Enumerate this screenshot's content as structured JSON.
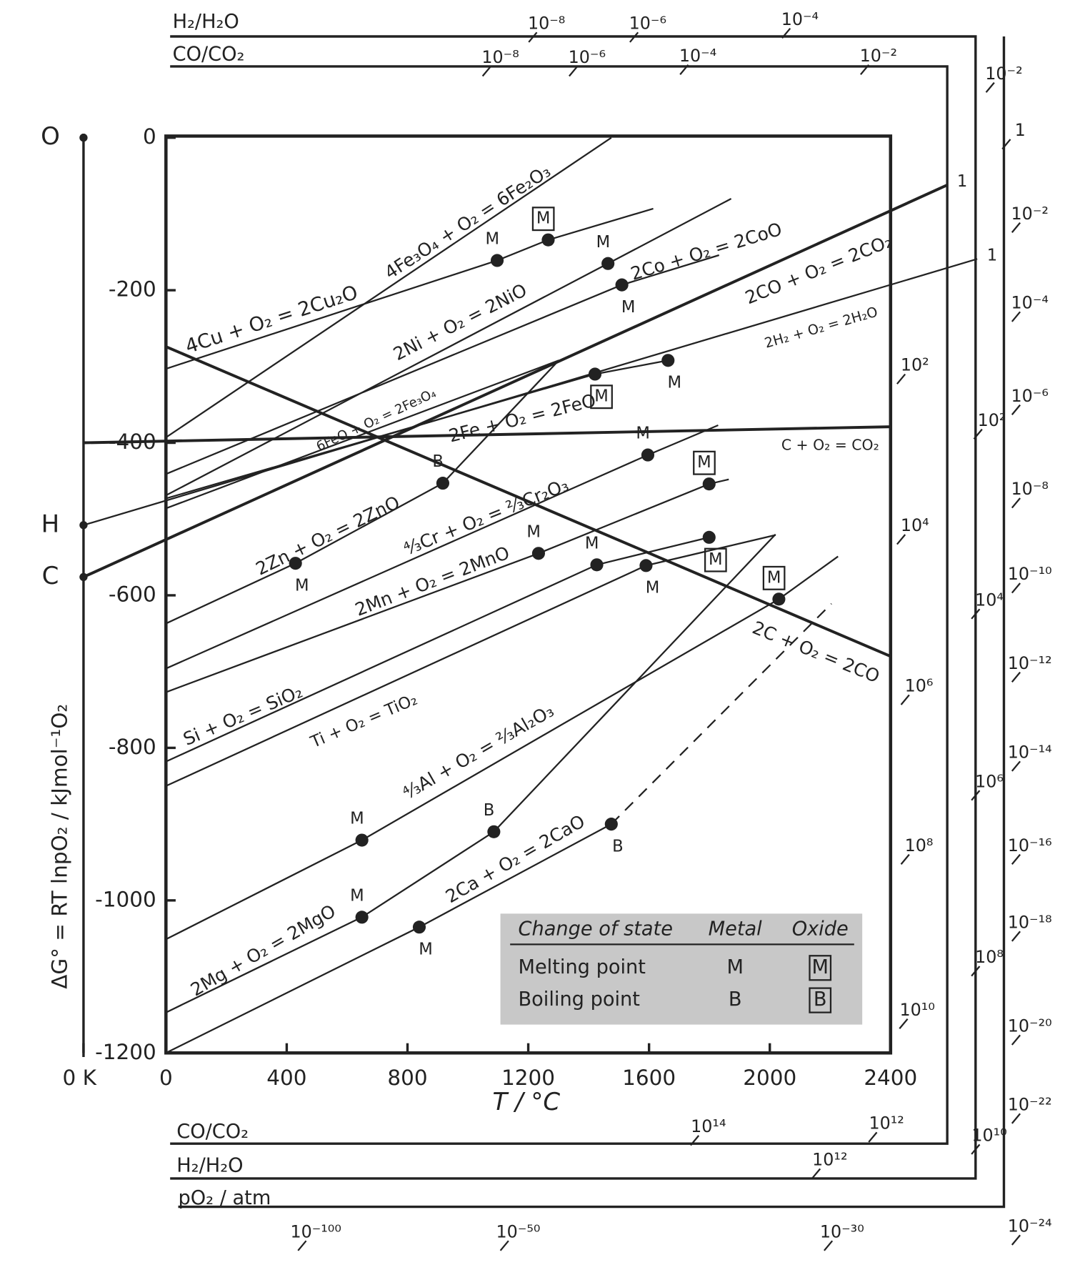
{
  "chart_data": {
    "type": "line",
    "xlabel": "T / °C",
    "ylabel": "ΔG° = RT lnpO₂  /  kJmol⁻¹O₂",
    "color": "#222222",
    "xlim": [
      -273,
      2400
    ],
    "xticks": [
      {
        "value": -273,
        "label": "0 K"
      },
      0,
      400,
      800,
      1200,
      1600,
      2000,
      2400
    ],
    "ylim": [
      -1200,
      0
    ],
    "yticks": [
      0,
      -200,
      -400,
      -600,
      -800,
      -1000,
      -1200
    ],
    "origin_points": {
      "labels": [
        "O",
        "H",
        "C"
      ],
      "values": [
        0,
        -508,
        -576
      ]
    },
    "series": [
      {
        "name": "4Cu + O₂ = 2Cu₂O",
        "x": [
          0,
          1097,
          1266,
          1614
        ],
        "values": [
          -303,
          -161,
          -134,
          -93
        ],
        "markers": [
          null,
          {
            "label": "M",
            "boxed": false
          },
          {
            "label": "M",
            "boxed": true
          },
          null
        ]
      },
      {
        "name": "4Fe₃O₄ + O₂ = 6Fe₂O₃",
        "x": [
          0,
          1475
        ],
        "values": [
          -393,
          0
        ]
      },
      {
        "name": "2Ni + O₂ = 2NiO",
        "x": [
          0,
          1464,
          1872
        ],
        "values": [
          -469,
          -165,
          -80
        ],
        "markers": [
          null,
          {
            "label": "M",
            "boxed": false
          },
          null
        ]
      },
      {
        "name": "2Co + O₂ = 2CoO",
        "x": [
          0,
          1510,
          1832
        ],
        "values": [
          -441,
          -193,
          -154
        ],
        "markers": [
          null,
          {
            "label": "M",
            "boxed": false
          },
          null
        ]
      },
      {
        "name": "2CO + O₂ = 2CO₂",
        "x": [
          -273,
          2588
        ],
        "values": [
          -576,
          -62
        ],
        "bold": true,
        "end_label": "1"
      },
      {
        "name": "2H₂ + O₂ = 2H₂O",
        "x": [
          -273,
          2687
        ],
        "values": [
          -508,
          -159
        ],
        "end_label": "1"
      },
      {
        "name": "2Fe + O₂ = 2FeO",
        "x": [
          0,
          1421,
          1663
        ],
        "values": [
          -473,
          -310,
          -292
        ],
        "markers": [
          null,
          {
            "label": "M",
            "boxed": true
          },
          {
            "label": "M",
            "boxed": false
          }
        ]
      },
      {
        "name": "6FeO + O₂ = 2Fe₃O₄",
        "x": [
          0,
          1301
        ],
        "values": [
          -486,
          -292
        ]
      },
      {
        "name": "C + O₂ = CO₂",
        "x": [
          -273,
          2400
        ],
        "values": [
          -400,
          -379
        ],
        "bold": true
      },
      {
        "name": "2C + O₂ = 2CO",
        "x": [
          0,
          2400
        ],
        "values": [
          -274,
          -680
        ],
        "bold": true
      },
      {
        "name": "2Zn + O₂ = 2ZnO",
        "x": [
          0,
          429,
          917,
          1301
        ],
        "values": [
          -637,
          -558,
          -453,
          -292
        ],
        "markers": [
          null,
          {
            "label": "M",
            "boxed": false
          },
          {
            "label": "B",
            "boxed": false
          },
          null
        ]
      },
      {
        "name": "⁴⁄₃Cr + O₂ = ²⁄₃Cr₂O₃",
        "x": [
          0,
          1596,
          1829
        ],
        "values": [
          -696,
          -416,
          -377
        ],
        "markers": [
          null,
          {
            "label": "M",
            "boxed": false
          },
          null
        ]
      },
      {
        "name": "2Mn + O₂ = 2MnO",
        "x": [
          0,
          1234,
          1799,
          1864
        ],
        "values": [
          -727,
          -545,
          -454,
          -448
        ],
        "markers": [
          null,
          {
            "label": "M",
            "boxed": false
          },
          {
            "label": "M",
            "boxed": true
          },
          null
        ]
      },
      {
        "name": "Si + O₂ = SiO₂",
        "x": [
          0,
          1427,
          1799
        ],
        "values": [
          -818,
          -560,
          -524
        ],
        "markers": [
          null,
          {
            "label": "M",
            "boxed": false
          },
          {
            "label": "M",
            "boxed": true
          }
        ]
      },
      {
        "name": "Ti + O₂ = TiO₂",
        "x": [
          0,
          1590,
          2019
        ],
        "values": [
          -850,
          -561,
          -521
        ],
        "markers": [
          null,
          {
            "label": "M",
            "boxed": false
          },
          null
        ]
      },
      {
        "name": "⁴⁄₃Al + O₂ = ²⁄₃Al₂O₃",
        "x": [
          0,
          649,
          2030,
          2226
        ],
        "values": [
          -1051,
          -921,
          -605,
          -549
        ],
        "markers": [
          null,
          {
            "label": "M",
            "boxed": false
          },
          {
            "label": "M",
            "boxed": true
          },
          null
        ]
      },
      {
        "name": "2Mg + O₂ = 2MgO",
        "x": [
          0,
          649,
          1086,
          2019
        ],
        "values": [
          -1147,
          -1022,
          -910,
          -520
        ],
        "markers": [
          null,
          {
            "label": "M",
            "boxed": false
          },
          {
            "label": "B",
            "boxed": false
          },
          null
        ]
      },
      {
        "name": "2Ca + O₂ = 2CaO",
        "x": [
          0,
          839,
          1475
        ],
        "values": [
          -1200,
          -1035,
          -900
        ],
        "markers": [
          null,
          {
            "label": "M",
            "boxed": false
          },
          {
            "label": "B",
            "boxed": false
          }
        ]
      },
      {
        "x": [
          1475,
          2204
        ],
        "values": [
          -900,
          -611
        ],
        "style": "dashed"
      }
    ],
    "legend": {
      "columns": [
        "Change of state",
        "Metal",
        "Oxide"
      ],
      "rows": [
        [
          "Melting point",
          "M",
          "M"
        ],
        [
          "Boiling point",
          "B",
          "B"
        ]
      ]
    },
    "scales": [
      {
        "name": "H₂/H₂O",
        "ticks": [
          "10⁻⁸",
          "10⁻⁶",
          "10⁻⁴",
          "10⁻²",
          "10²",
          "10⁴",
          "10⁶",
          "10⁸",
          "10¹⁰"
        ]
      },
      {
        "name": "CO/CO₂",
        "ticks": [
          "10⁻⁸",
          "10⁻⁶",
          "10⁻⁴",
          "10⁻²",
          "10²",
          "10⁴",
          "10⁶",
          "10⁸",
          "10¹⁰"
        ]
      },
      {
        "name": "CO/CO₂",
        "ticks": [
          "10¹⁴",
          "10¹²"
        ]
      },
      {
        "name": "H₂/H₂O",
        "ticks": [
          "10¹²"
        ]
      },
      {
        "name": "pO₂ / atm",
        "ticks": [
          "1",
          "10⁻²",
          "10⁻⁴",
          "10⁻⁶",
          "10⁻⁸",
          "10⁻¹⁰",
          "10⁻¹²",
          "10⁻¹⁴",
          "10⁻¹⁶",
          "10⁻¹⁸",
          "10⁻²⁰",
          "10⁻²²",
          "10⁻²⁴",
          "10⁻¹⁰⁰",
          "10⁻⁵⁰",
          "10⁻³⁰"
        ]
      }
    ]
  }
}
